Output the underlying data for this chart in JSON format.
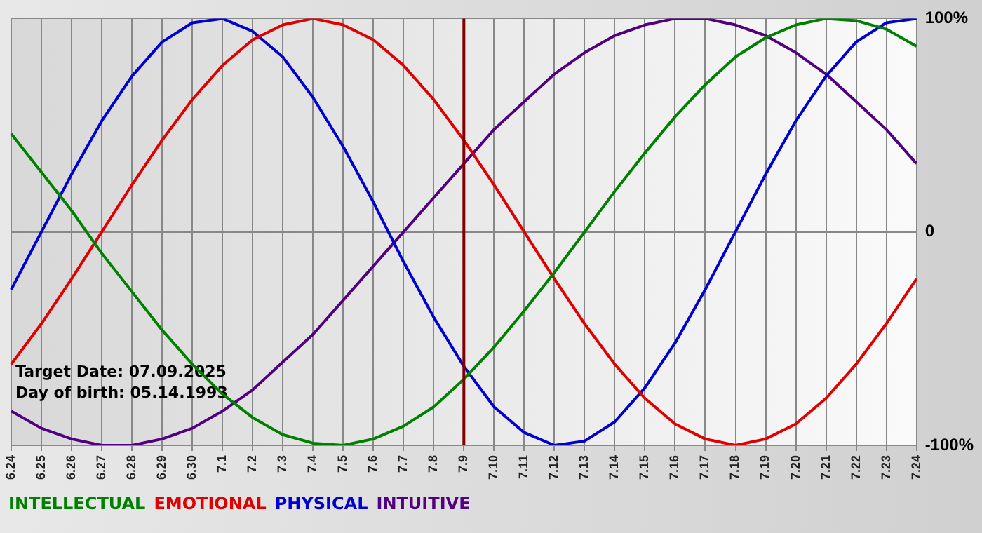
{
  "chart_data": {
    "type": "line",
    "categories": [
      "6.24",
      "6.25",
      "6.26",
      "6.27",
      "6.28",
      "6.29",
      "6.30",
      "7.1",
      "7.2",
      "7.3",
      "7.4",
      "7.5",
      "7.6",
      "7.7",
      "7.8",
      "7.9",
      "7.10",
      "7.11",
      "7.12",
      "7.13",
      "7.14",
      "7.15",
      "7.16",
      "7.17",
      "7.18",
      "7.19",
      "7.20",
      "7.21",
      "7.22",
      "7.23",
      "7.24"
    ],
    "series": [
      {
        "name": "INTELLECTUAL",
        "color": "#008000",
        "values": [
          46,
          28,
          10,
          -10,
          -28,
          -46,
          -62,
          -76,
          -87,
          -95,
          -99,
          -100,
          -97,
          -91,
          -82,
          -69,
          -54,
          -37,
          -19,
          0,
          19,
          37,
          54,
          69,
          82,
          91,
          97,
          100,
          99,
          95,
          87
        ]
      },
      {
        "name": "EMOTIONAL",
        "color": "#e00000",
        "values": [
          -62,
          -43,
          -22,
          0,
          22,
          43,
          62,
          78,
          90,
          97,
          100,
          97,
          90,
          78,
          62,
          43,
          22,
          0,
          -22,
          -43,
          -62,
          -78,
          -90,
          -97,
          -100,
          -97,
          -90,
          -78,
          -62,
          -43,
          -22
        ]
      },
      {
        "name": "PHYSICAL",
        "color": "#0000d0",
        "values": [
          -27,
          0,
          27,
          52,
          73,
          89,
          98,
          100,
          94,
          82,
          63,
          40,
          14,
          -14,
          -40,
          -63,
          -82,
          -94,
          -100,
          -98,
          -89,
          -73,
          -52,
          -27,
          0,
          27,
          52,
          73,
          89,
          98,
          100
        ]
      },
      {
        "name": "INTUITIVE",
        "color": "#500080",
        "values": [
          -84,
          -92,
          -97,
          -100,
          -100,
          -97,
          -92,
          -84,
          -74,
          -61,
          -48,
          -32,
          -16,
          0,
          16,
          32,
          48,
          61,
          74,
          84,
          92,
          97,
          100,
          100,
          97,
          92,
          84,
          74,
          61,
          48,
          32
        ]
      }
    ],
    "ylim": [
      -100,
      100
    ],
    "yticks": [
      {
        "value": -100,
        "label": "-100%"
      },
      {
        "value": 0,
        "label": "0"
      },
      {
        "value": 100,
        "label": "100%"
      }
    ],
    "ref_lines": [
      {
        "axis": "x",
        "value": "7.9",
        "color": "#800000"
      }
    ],
    "annotations": [
      "Target Date: 07.09.2025",
      "Day of birth: 05.14.1993"
    ],
    "grid": true,
    "legend": "bottom left",
    "marker": "none",
    "line_style": "solid"
  }
}
